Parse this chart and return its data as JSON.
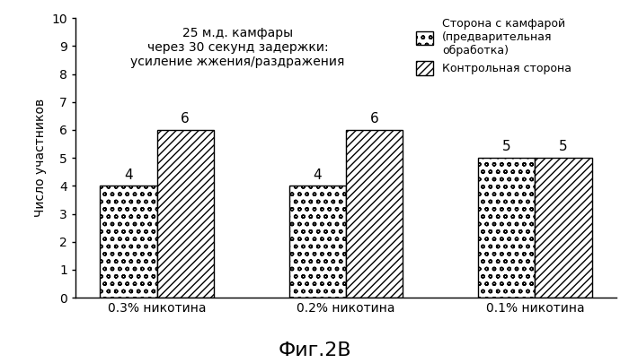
{
  "groups": [
    "0.3% никотина",
    "0.2% никотина",
    "0.1% никотина"
  ],
  "camphor_values": [
    4,
    4,
    5
  ],
  "control_values": [
    6,
    6,
    5
  ],
  "ylabel": "Число участников",
  "ylim": [
    0,
    10
  ],
  "yticks": [
    0,
    1,
    2,
    3,
    4,
    5,
    6,
    7,
    8,
    9,
    10
  ],
  "annotation_text": "25 м.д. камфары\nчерез 30 секунд задержки:\nусиление жжения/раздражения",
  "legend_camphor": "Сторона с камфарой\n(предварительная\nобработка)",
  "legend_control": "Контрольная сторона",
  "figure_label": "Фиг.2В",
  "bar_width": 0.3,
  "background_color": "#ffffff",
  "annotation_fontsize": 10,
  "axis_fontsize": 10,
  "tick_fontsize": 10,
  "value_label_fontsize": 11,
  "fig_label_fontsize": 16,
  "legend_fontsize": 9
}
